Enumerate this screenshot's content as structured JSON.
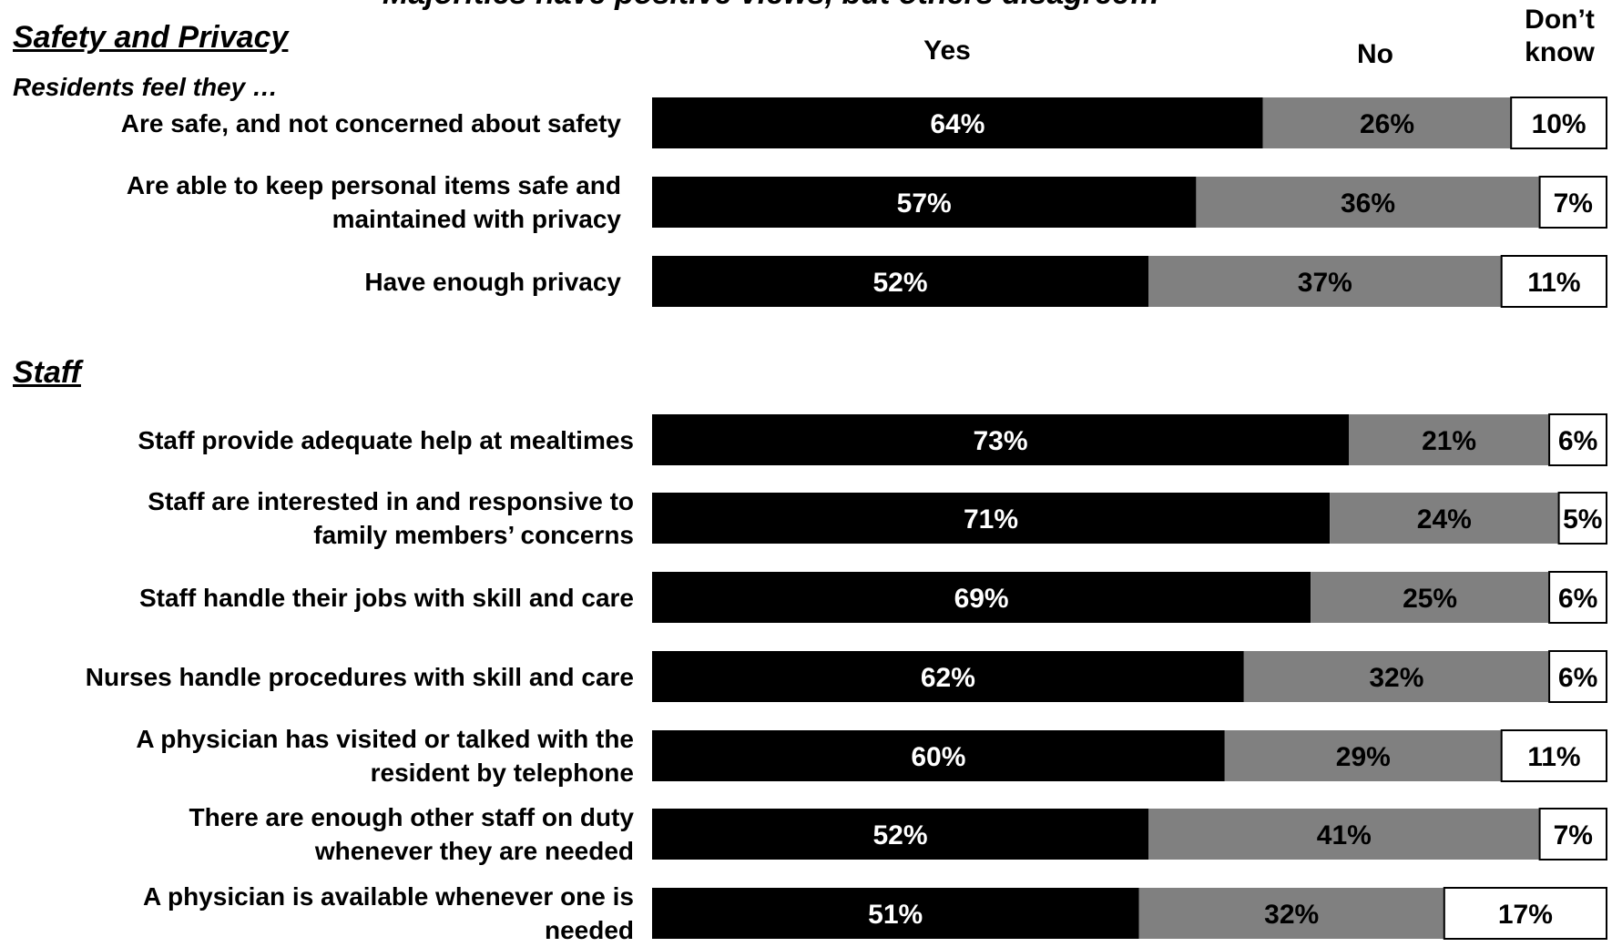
{
  "title": "Majorities have positive views, but others disagree…",
  "headers": {
    "yes": "Yes",
    "no": "No",
    "dk_line1": "Don’t",
    "dk_line2": "know"
  },
  "colors": {
    "yes": "#000000",
    "no": "#808080",
    "dont_know": "#ffffff",
    "yes_text": "#ffffff",
    "other_text": "#000000"
  },
  "chart_data": {
    "type": "bar",
    "orientation": "horizontal",
    "stacked": true,
    "percent_axis": [
      0,
      100
    ],
    "legend": [
      "Yes",
      "No",
      "Don’t know"
    ],
    "sections": [
      {
        "title": "Safety and Privacy",
        "subtitle": "Residents feel they …",
        "rows": [
          {
            "label_lines": [
              "Are safe, and not concerned about safety"
            ],
            "values": [
              64,
              26,
              10
            ]
          },
          {
            "label_lines": [
              "Are able to keep personal items safe and",
              "maintained with privacy"
            ],
            "values": [
              57,
              36,
              7
            ]
          },
          {
            "label_lines": [
              "Have enough privacy"
            ],
            "values": [
              52,
              37,
              11
            ]
          }
        ]
      },
      {
        "title": "Staff",
        "subtitle": "",
        "rows": [
          {
            "label_lines": [
              "Staff provide adequate help at mealtimes"
            ],
            "values": [
              73,
              21,
              6
            ]
          },
          {
            "label_lines": [
              "Staff are interested in and responsive to",
              "family members’ concerns"
            ],
            "values": [
              71,
              24,
              5
            ]
          },
          {
            "label_lines": [
              "Staff handle their jobs with skill and care"
            ],
            "values": [
              69,
              25,
              6
            ]
          },
          {
            "label_lines": [
              "Nurses handle procedures with skill and care"
            ],
            "values": [
              62,
              32,
              6
            ]
          },
          {
            "label_lines": [
              "A physician has visited or talked with the",
              "resident by telephone"
            ],
            "values": [
              60,
              29,
              11
            ]
          },
          {
            "label_lines": [
              "There are enough other staff on duty",
              "whenever they are needed"
            ],
            "values": [
              52,
              41,
              7
            ]
          },
          {
            "label_lines": [
              "A physician is available whenever one is",
              "needed"
            ],
            "values": [
              51,
              32,
              17
            ]
          }
        ]
      }
    ]
  }
}
